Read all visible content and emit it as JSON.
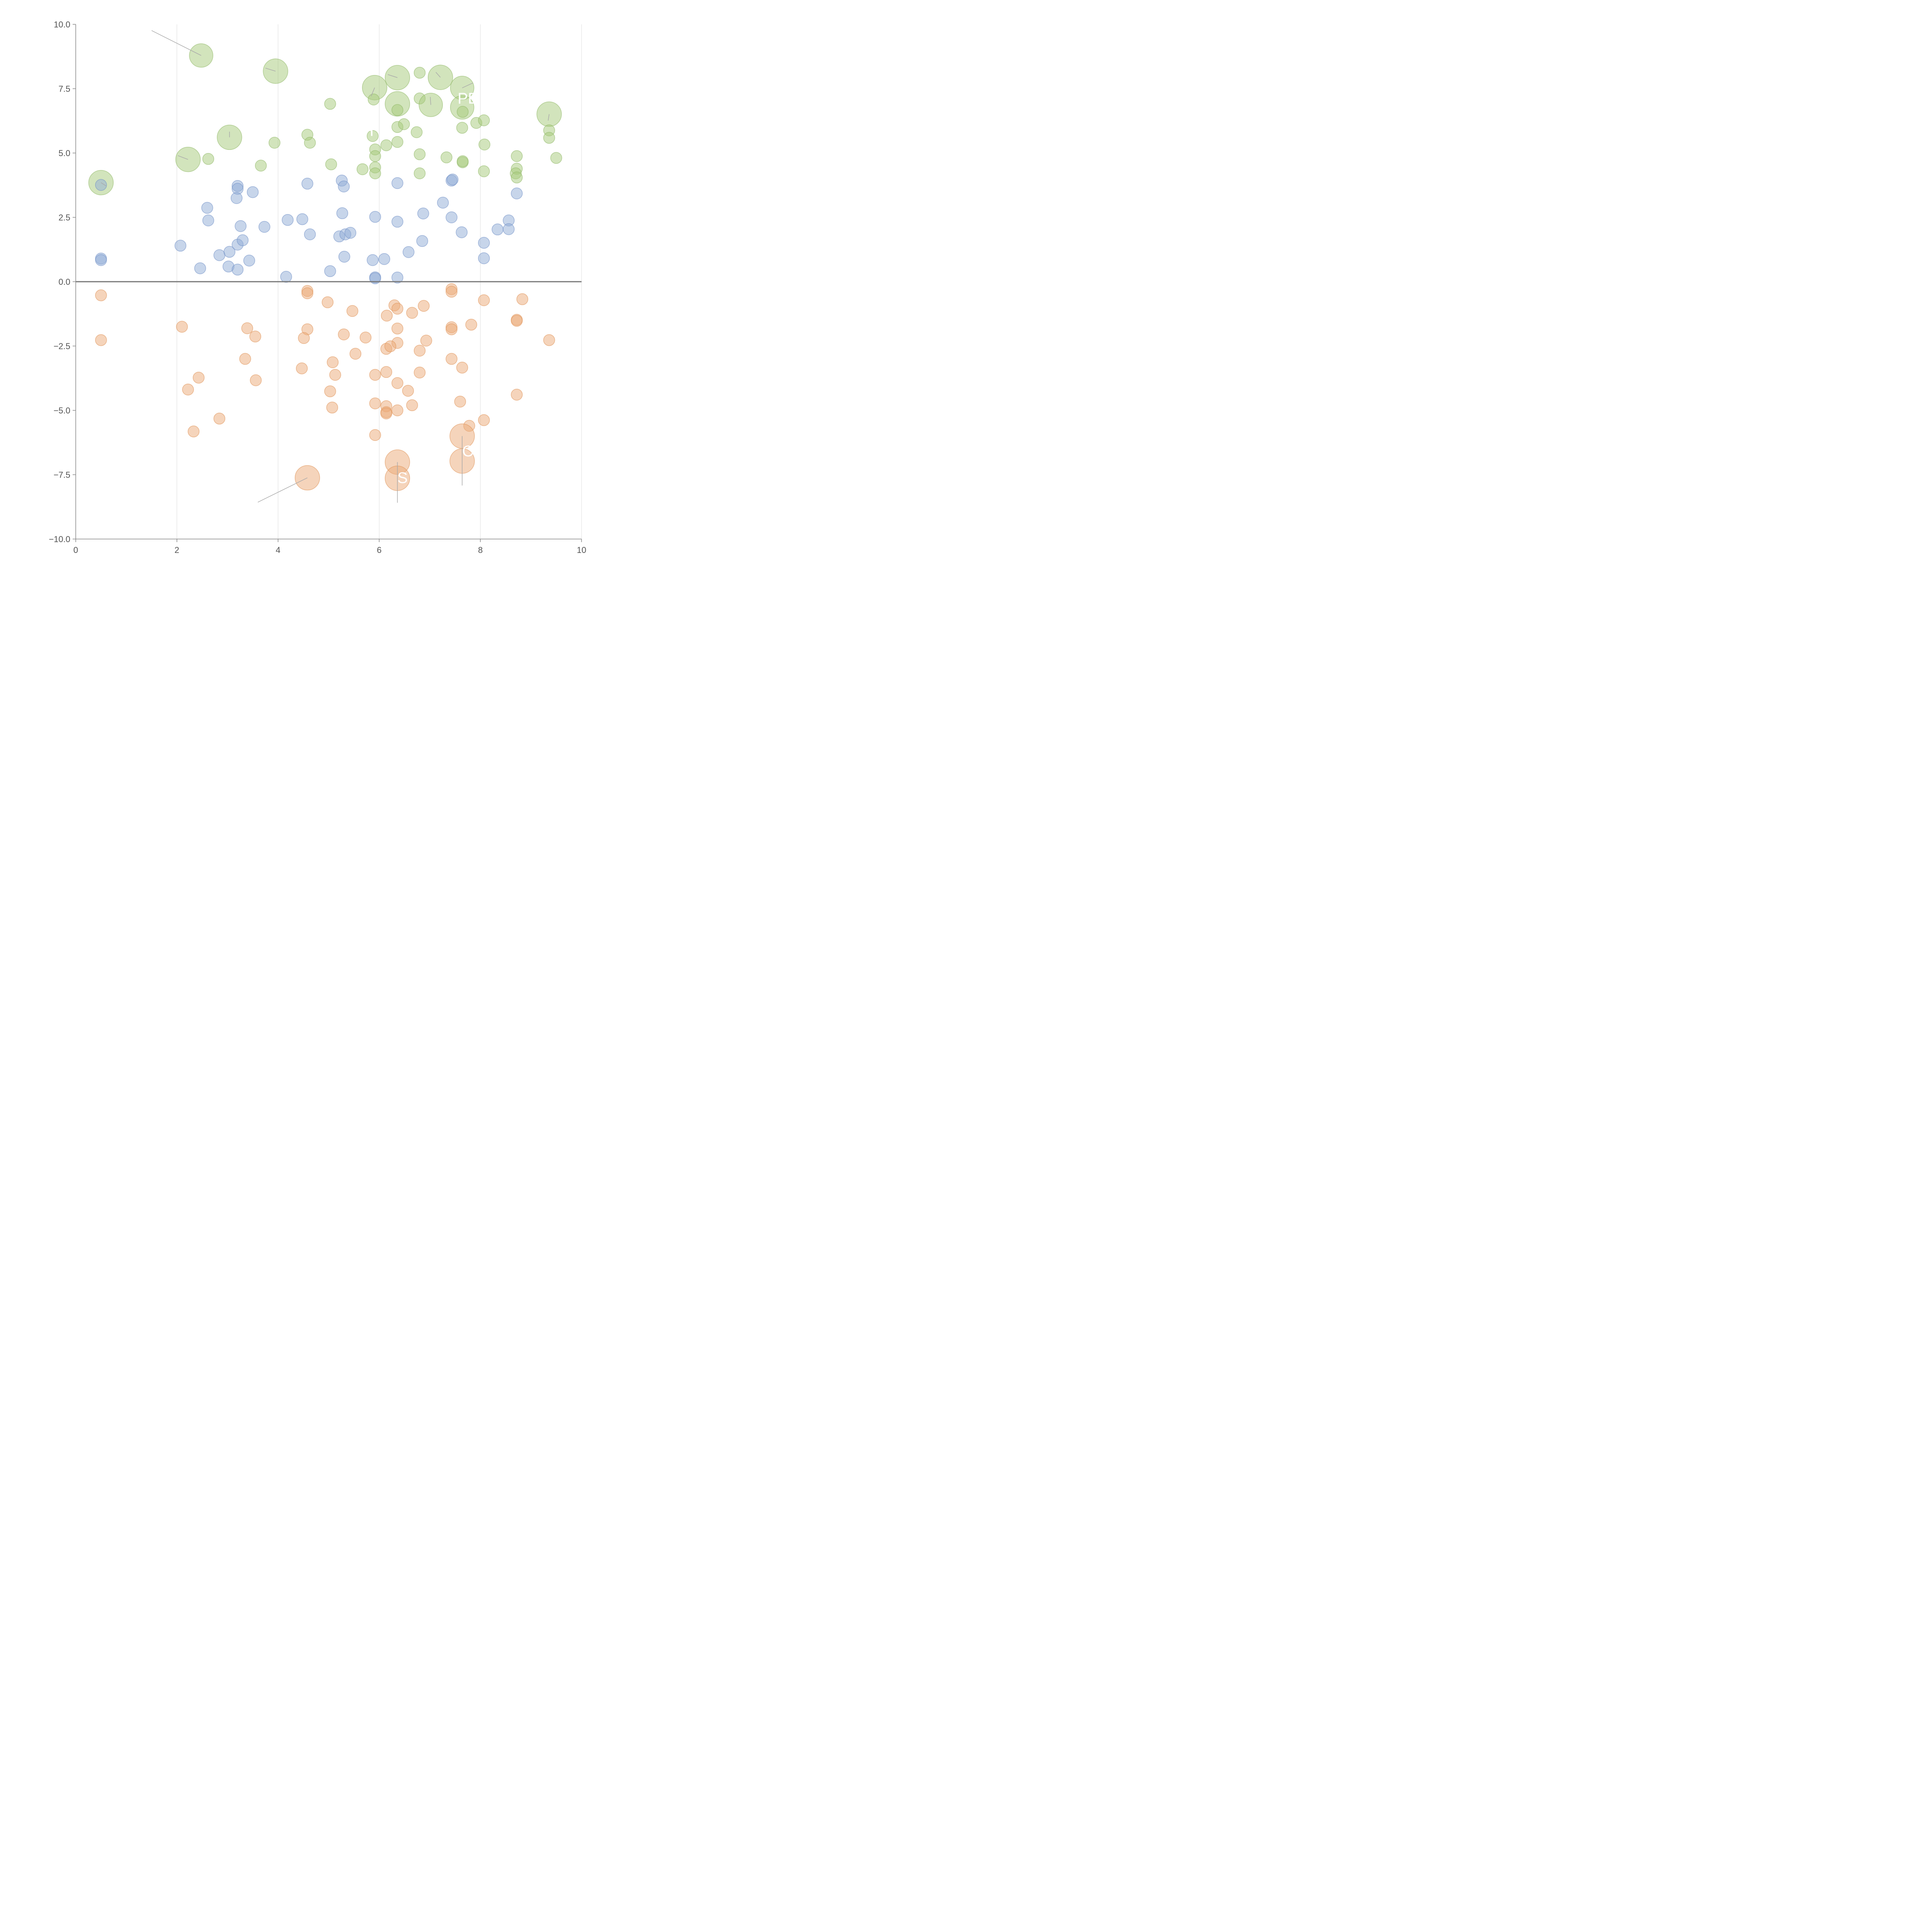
{
  "chart_data": {
    "type": "scatter",
    "title": "",
    "xlabel": "",
    "ylabel": "",
    "xlim": [
      0,
      10
    ],
    "ylim": [
      -10,
      10
    ],
    "grid": "vertical",
    "legend": "none",
    "xticks": [
      "0",
      "2",
      "4",
      "6",
      "8",
      "10"
    ],
    "yticks": [
      "10.0",
      "7.5",
      "5.0",
      "2.5",
      "0.0",
      "−2.5",
      "−5.0",
      "−7.5",
      "−10.0"
    ],
    "series": [
      {
        "name": "green",
        "color": "#a6c97a",
        "stroke": "#8fb866",
        "points": [
          [
            2.48,
            8.79,
            2.1
          ],
          [
            3.95,
            8.18,
            2.2
          ],
          [
            6.36,
            7.93,
            2.2
          ],
          [
            6.8,
            8.12,
            1.0
          ],
          [
            7.21,
            7.94,
            2.2
          ],
          [
            7.64,
            7.53,
            2.1
          ],
          [
            5.91,
            7.54,
            2.2
          ],
          [
            5.89,
            7.08,
            1.0
          ],
          [
            6.36,
            6.91,
            2.2
          ],
          [
            6.8,
            7.12,
            1.0
          ],
          [
            7.02,
            6.87,
            2.1
          ],
          [
            7.64,
            6.77,
            2.1
          ],
          [
            9.36,
            6.51,
            2.2
          ],
          [
            5.03,
            6.91,
            1.0
          ],
          [
            6.36,
            6.67,
            1.0
          ],
          [
            7.65,
            6.6,
            1.0
          ],
          [
            3.04,
            5.61,
            2.2
          ],
          [
            6.36,
            6.01,
            1.0
          ],
          [
            6.49,
            6.12,
            1.0
          ],
          [
            6.74,
            5.81,
            1.0
          ],
          [
            7.64,
            5.98,
            1.0
          ],
          [
            7.92,
            6.17,
            1.0
          ],
          [
            8.07,
            6.27,
            1.0
          ],
          [
            9.36,
            5.88,
            1.0
          ],
          [
            9.36,
            5.59,
            1.0
          ],
          [
            5.87,
            5.66,
            1.0
          ],
          [
            4.58,
            5.71,
            1.0
          ],
          [
            4.63,
            5.4,
            1.0
          ],
          [
            3.93,
            5.4,
            1.0
          ],
          [
            6.14,
            5.3,
            1.0
          ],
          [
            6.36,
            5.43,
            1.0
          ],
          [
            8.08,
            5.33,
            1.0
          ],
          [
            2.22,
            4.75,
            2.2
          ],
          [
            2.62,
            4.77,
            1.0
          ],
          [
            5.05,
            4.56,
            1.0
          ],
          [
            3.66,
            4.51,
            1.0
          ],
          [
            5.92,
            5.14,
            1.0
          ],
          [
            5.92,
            4.88,
            1.0
          ],
          [
            6.8,
            4.95,
            1.0
          ],
          [
            7.33,
            4.83,
            1.0
          ],
          [
            8.72,
            4.88,
            1.0
          ],
          [
            9.5,
            4.81,
            1.0
          ],
          [
            5.92,
            4.44,
            1.0
          ],
          [
            5.92,
            4.21,
            1.0
          ],
          [
            5.67,
            4.37,
            1.0
          ],
          [
            6.8,
            4.21,
            1.0
          ],
          [
            7.65,
            4.64,
            1.0
          ],
          [
            7.65,
            4.68,
            1.0
          ],
          [
            8.07,
            4.29,
            1.0
          ],
          [
            8.72,
            4.39,
            1.0
          ],
          [
            8.7,
            4.21,
            1.0
          ],
          [
            8.72,
            4.05,
            1.0
          ],
          [
            0.5,
            3.85,
            2.2
          ]
        ]
      },
      {
        "name": "blue",
        "color": "#8fabd6",
        "stroke": "#6f90c6",
        "points": [
          [
            0.5,
            3.76,
            1.0
          ],
          [
            3.2,
            3.72,
            1.0
          ],
          [
            3.2,
            3.61,
            1.0
          ],
          [
            3.18,
            3.25,
            1.0
          ],
          [
            3.5,
            3.48,
            1.0
          ],
          [
            4.58,
            3.81,
            1.0
          ],
          [
            5.26,
            3.93,
            1.0
          ],
          [
            5.3,
            3.7,
            1.0
          ],
          [
            6.36,
            3.83,
            1.0
          ],
          [
            7.43,
            3.93,
            1.0
          ],
          [
            7.45,
            3.97,
            1.0
          ],
          [
            8.72,
            3.43,
            1.0
          ],
          [
            2.6,
            2.87,
            1.0
          ],
          [
            2.62,
            2.38,
            1.0
          ],
          [
            3.26,
            2.16,
            1.0
          ],
          [
            3.73,
            2.13,
            1.0
          ],
          [
            4.19,
            2.4,
            1.0
          ],
          [
            4.48,
            2.43,
            1.0
          ],
          [
            5.27,
            2.66,
            1.0
          ],
          [
            5.92,
            2.52,
            1.0
          ],
          [
            6.36,
            2.33,
            1.0
          ],
          [
            6.87,
            2.65,
            1.0
          ],
          [
            7.26,
            3.07,
            1.0
          ],
          [
            7.43,
            2.5,
            1.0
          ],
          [
            8.56,
            2.38,
            1.0
          ],
          [
            4.63,
            1.84,
            1.0
          ],
          [
            5.21,
            1.76,
            1.0
          ],
          [
            5.33,
            1.84,
            1.0
          ],
          [
            5.43,
            1.9,
            1.0
          ],
          [
            7.63,
            1.92,
            1.0
          ],
          [
            8.34,
            2.03,
            1.0
          ],
          [
            8.56,
            2.04,
            1.0
          ],
          [
            2.07,
            1.4,
            1.0
          ],
          [
            2.84,
            1.03,
            1.0
          ],
          [
            3.04,
            1.16,
            1.0
          ],
          [
            3.2,
            1.44,
            1.0
          ],
          [
            3.3,
            1.61,
            1.0
          ],
          [
            3.43,
            0.82,
            1.0
          ],
          [
            3.02,
            0.59,
            1.0
          ],
          [
            3.2,
            0.47,
            1.0
          ],
          [
            2.46,
            0.52,
            1.0
          ],
          [
            0.5,
            0.9,
            1.0
          ],
          [
            0.5,
            0.84,
            1.0
          ],
          [
            5.31,
            0.97,
            1.0
          ],
          [
            5.87,
            0.84,
            1.0
          ],
          [
            6.1,
            0.88,
            1.0
          ],
          [
            6.58,
            1.15,
            1.0
          ],
          [
            6.85,
            1.58,
            1.0
          ],
          [
            8.07,
            1.51,
            1.0
          ],
          [
            8.07,
            0.91,
            1.0
          ],
          [
            4.16,
            0.19,
            1.0
          ],
          [
            5.03,
            0.41,
            1.0
          ],
          [
            5.92,
            0.17,
            1.0
          ],
          [
            5.92,
            0.13,
            1.0
          ],
          [
            6.36,
            0.16,
            1.0
          ]
        ]
      },
      {
        "name": "orange",
        "color": "#eba978",
        "stroke": "#df9257",
        "points": [
          [
            0.5,
            -0.53,
            1.0
          ],
          [
            0.5,
            -2.27,
            1.0
          ],
          [
            4.58,
            -0.36,
            1.0
          ],
          [
            4.58,
            -0.45,
            1.0
          ],
          [
            4.98,
            -0.8,
            1.0
          ],
          [
            7.43,
            -0.29,
            1.0
          ],
          [
            7.43,
            -0.39,
            1.0
          ],
          [
            8.07,
            -0.72,
            1.0
          ],
          [
            8.83,
            -0.68,
            1.0
          ],
          [
            5.47,
            -1.14,
            1.0
          ],
          [
            6.3,
            -0.92,
            1.0
          ],
          [
            6.36,
            -1.05,
            1.0
          ],
          [
            6.65,
            -1.21,
            1.0
          ],
          [
            6.88,
            -0.94,
            1.0
          ],
          [
            6.15,
            -1.32,
            1.0
          ],
          [
            2.1,
            -1.75,
            1.0
          ],
          [
            3.39,
            -1.81,
            1.0
          ],
          [
            3.55,
            -2.13,
            1.0
          ],
          [
            4.58,
            -1.85,
            1.0
          ],
          [
            4.51,
            -2.19,
            1.0
          ],
          [
            5.3,
            -2.05,
            1.0
          ],
          [
            5.73,
            -2.17,
            1.0
          ],
          [
            6.36,
            -1.82,
            1.0
          ],
          [
            7.43,
            -1.77,
            1.0
          ],
          [
            7.43,
            -1.85,
            1.0
          ],
          [
            7.82,
            -1.67,
            1.0
          ],
          [
            8.72,
            -1.48,
            1.0
          ],
          [
            8.72,
            -1.52,
            1.0
          ],
          [
            9.36,
            -2.27,
            1.0
          ],
          [
            6.36,
            -2.38,
            1.0
          ],
          [
            6.14,
            -2.61,
            1.0
          ],
          [
            6.22,
            -2.51,
            1.0
          ],
          [
            6.8,
            -2.68,
            1.0
          ],
          [
            6.93,
            -2.29,
            1.0
          ],
          [
            5.53,
            -2.8,
            1.0
          ],
          [
            3.35,
            -3.0,
            1.0
          ],
          [
            4.47,
            -3.37,
            1.0
          ],
          [
            5.08,
            -3.13,
            1.0
          ],
          [
            5.13,
            -3.62,
            1.0
          ],
          [
            5.92,
            -3.62,
            1.0
          ],
          [
            6.14,
            -3.51,
            1.0
          ],
          [
            6.8,
            -3.53,
            1.0
          ],
          [
            7.43,
            -3.0,
            1.0
          ],
          [
            7.64,
            -3.34,
            1.0
          ],
          [
            2.43,
            -3.73,
            1.0
          ],
          [
            2.22,
            -4.19,
            1.0
          ],
          [
            3.56,
            -3.83,
            1.0
          ],
          [
            5.03,
            -4.26,
            1.0
          ],
          [
            6.36,
            -3.94,
            1.0
          ],
          [
            6.57,
            -4.24,
            1.0
          ],
          [
            8.72,
            -4.39,
            1.0
          ],
          [
            5.92,
            -4.73,
            1.0
          ],
          [
            6.14,
            -4.84,
            1.0
          ],
          [
            6.14,
            -5.07,
            1.0
          ],
          [
            6.14,
            -5.12,
            1.0
          ],
          [
            6.36,
            -5.0,
            1.0
          ],
          [
            6.65,
            -4.8,
            1.0
          ],
          [
            7.6,
            -4.66,
            1.0
          ],
          [
            5.07,
            -4.89,
            1.0
          ],
          [
            2.84,
            -5.32,
            1.0
          ],
          [
            2.33,
            -5.82,
            1.0
          ],
          [
            5.92,
            -5.96,
            1.0
          ],
          [
            7.78,
            -5.6,
            1.0
          ],
          [
            8.07,
            -5.38,
            1.0
          ],
          [
            7.64,
            -6.0,
            2.2
          ],
          [
            7.64,
            -6.97,
            2.2
          ],
          [
            6.36,
            -7.01,
            2.2
          ],
          [
            6.36,
            -7.64,
            2.2
          ],
          [
            4.58,
            -7.62,
            2.2
          ]
        ]
      }
    ],
    "annotations": [
      {
        "text": "PE",
        "x": 7.55,
        "y": 6.92
      },
      {
        "text": "H",
        "x": 5.67,
        "y": 5.67
      },
      {
        "text": "O",
        "x": 7.64,
        "y": -6.79
      },
      {
        "text": "S",
        "x": 6.36,
        "y": -7.82
      }
    ],
    "leader_lines": [
      [
        [
          2.48,
          8.79
        ],
        [
          1.5,
          9.76
        ]
      ],
      [
        [
          3.95,
          8.18
        ],
        [
          3.75,
          8.3
        ]
      ],
      [
        [
          6.36,
          7.93
        ],
        [
          6.17,
          8.05
        ]
      ],
      [
        [
          7.21,
          7.94
        ],
        [
          7.12,
          8.14
        ]
      ],
      [
        [
          7.64,
          7.53
        ],
        [
          7.85,
          7.72
        ]
      ],
      [
        [
          5.91,
          7.54
        ],
        [
          5.84,
          7.21
        ]
      ],
      [
        [
          7.02,
          6.87
        ],
        [
          7.01,
          7.18
        ]
      ],
      [
        [
          9.36,
          6.51
        ],
        [
          9.34,
          6.26
        ]
      ],
      [
        [
          3.04,
          5.61
        ],
        [
          3.04,
          5.83
        ]
      ],
      [
        [
          2.22,
          4.75
        ],
        [
          2.02,
          4.9
        ]
      ],
      [
        [
          0.5,
          3.85
        ],
        [
          0.6,
          3.72
        ]
      ],
      [
        [
          4.58,
          -7.62
        ],
        [
          3.6,
          -8.57
        ]
      ],
      [
        [
          6.36,
          -7.01
        ],
        [
          6.36,
          -8.59
        ]
      ],
      [
        [
          7.64,
          -6.0
        ],
        [
          7.64,
          -7.92
        ]
      ]
    ]
  }
}
